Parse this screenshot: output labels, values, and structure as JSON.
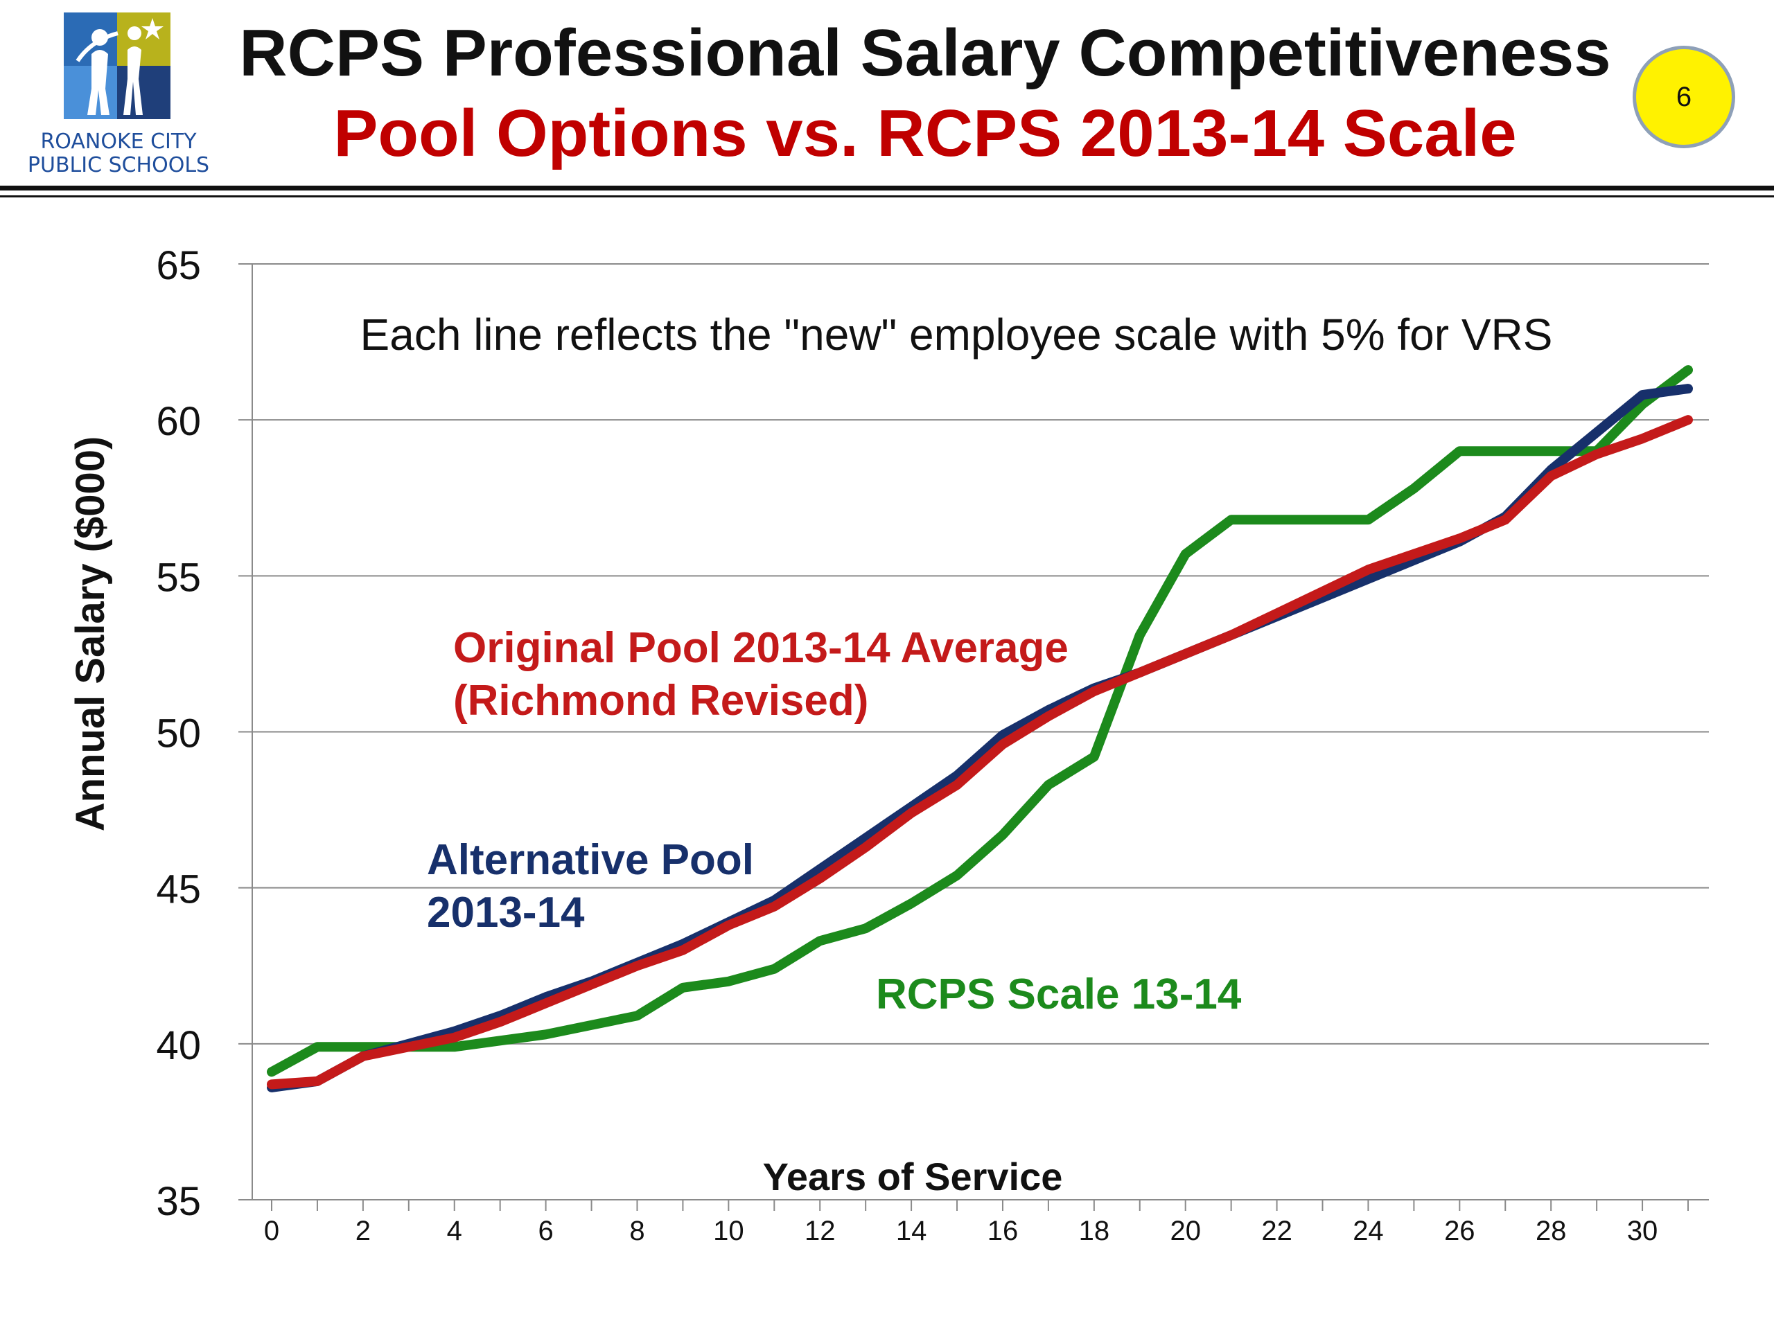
{
  "header": {
    "logo_line1": "ROANOKE CITY",
    "logo_line2": "PUBLIC SCHOOLS",
    "title": "RCPS Professional Salary Competitiveness",
    "subtitle": "Pool Options vs. RCPS 2013-14 Scale",
    "slide_number": "6"
  },
  "chart_data": {
    "type": "line",
    "title": "",
    "note": "Each line reflects the \"new\" employee scale with 5% for VRS",
    "xlabel": "Years of Service",
    "ylabel": "Annual Salary ($000)",
    "xlim": [
      0,
      31
    ],
    "ylim": [
      35,
      65
    ],
    "x_ticks": [
      0,
      2,
      4,
      6,
      8,
      10,
      12,
      14,
      16,
      18,
      20,
      22,
      24,
      26,
      28,
      30
    ],
    "y_ticks": [
      35,
      40,
      45,
      50,
      55,
      60,
      65
    ],
    "grid": true,
    "x": [
      0,
      1,
      2,
      3,
      4,
      5,
      6,
      7,
      8,
      9,
      10,
      11,
      12,
      13,
      14,
      15,
      16,
      17,
      18,
      19,
      20,
      21,
      22,
      23,
      24,
      25,
      26,
      27,
      28,
      29,
      30,
      31
    ],
    "series": [
      {
        "name": "Alternative Pool 2013-14",
        "label_line1": "Alternative Pool",
        "label_line2": "2013-14",
        "color": "#17306b",
        "values": [
          38.6,
          38.8,
          39.6,
          40.0,
          40.4,
          40.9,
          41.5,
          42.0,
          42.6,
          43.2,
          43.9,
          44.6,
          45.6,
          46.6,
          47.6,
          48.6,
          49.9,
          50.7,
          51.4,
          51.9,
          52.5,
          53.1,
          53.7,
          54.3,
          54.9,
          55.5,
          56.1,
          56.9,
          58.4,
          59.6,
          60.8,
          61.0
        ]
      },
      {
        "name": "Original Pool 2013-14 Average (Richmond Revised)",
        "label_line1": "Original Pool 2013-14 Average",
        "label_line2": "(Richmond Revised)",
        "color": "#c41a1a",
        "values": [
          38.7,
          38.8,
          39.6,
          39.9,
          40.2,
          40.7,
          41.3,
          41.9,
          42.5,
          43.0,
          43.8,
          44.4,
          45.3,
          46.3,
          47.4,
          48.3,
          49.6,
          50.5,
          51.3,
          51.9,
          52.5,
          53.1,
          53.8,
          54.5,
          55.2,
          55.7,
          56.2,
          56.8,
          58.2,
          58.9,
          59.4,
          60.0
        ]
      },
      {
        "name": "RCPS Scale 13-14",
        "label_line1": "RCPS Scale 13-14",
        "color": "#1c8a1c",
        "values": [
          39.1,
          39.9,
          39.9,
          39.9,
          39.9,
          40.1,
          40.3,
          40.6,
          40.9,
          41.8,
          42.0,
          42.4,
          43.3,
          43.7,
          44.5,
          45.4,
          46.7,
          48.3,
          49.2,
          53.1,
          55.7,
          56.8,
          56.8,
          56.8,
          56.8,
          57.8,
          59.0,
          59.0,
          59.0,
          59.0,
          60.5,
          61.6
        ]
      }
    ]
  }
}
